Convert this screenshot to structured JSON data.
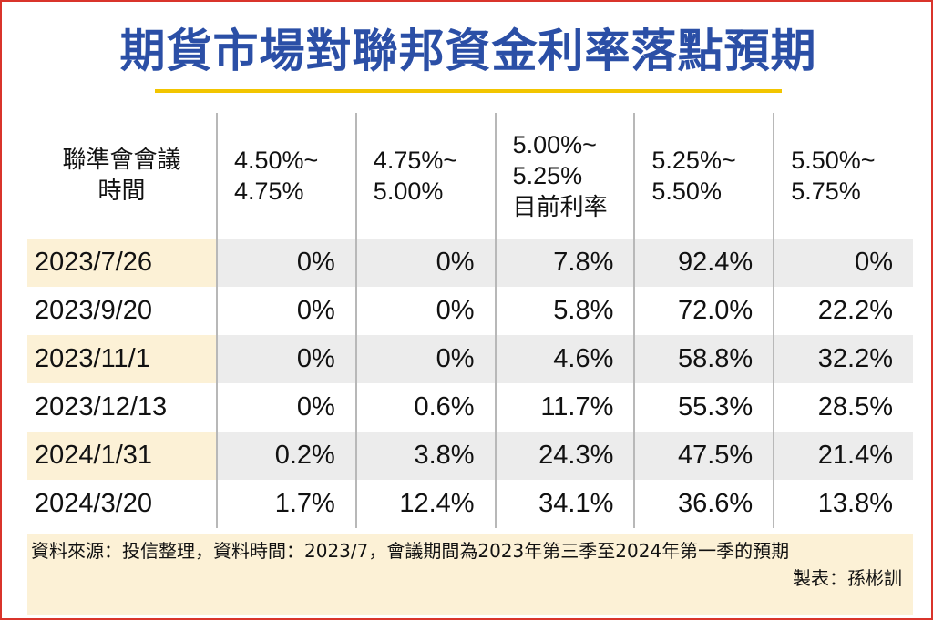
{
  "title": "期貨市場對聯邦資金利率落點預期",
  "colors": {
    "title": "#2b4fa6",
    "title_rule": "#f2c500",
    "frame": "#d9342b",
    "shade_date": "#fcf1d6",
    "shade_value": "#ececec"
  },
  "chart_data": {
    "type": "table",
    "columns": [
      {
        "line1": "聯準會會議",
        "line2": "時間",
        "line3": ""
      },
      {
        "line1": "4.50%~",
        "line2": "4.75%",
        "line3": ""
      },
      {
        "line1": "4.75%~",
        "line2": "5.00%",
        "line3": ""
      },
      {
        "line1": "5.00%~",
        "line2": "5.25%",
        "line3": "目前利率"
      },
      {
        "line1": "5.25%~",
        "line2": "5.50%",
        "line3": ""
      },
      {
        "line1": "5.50%~",
        "line2": "5.75%",
        "line3": ""
      }
    ],
    "rows": [
      {
        "date": "2023/7/26",
        "values": [
          "0%",
          "0%",
          "7.8%",
          "92.4%",
          "0%"
        ]
      },
      {
        "date": "2023/9/20",
        "values": [
          "0%",
          "0%",
          "5.8%",
          "72.0%",
          "22.2%"
        ]
      },
      {
        "date": "2023/11/1",
        "values": [
          "0%",
          "0%",
          "4.6%",
          "58.8%",
          "32.2%"
        ]
      },
      {
        "date": "2023/12/13",
        "values": [
          "0%",
          "0.6%",
          "11.7%",
          "55.3%",
          "28.5%"
        ]
      },
      {
        "date": "2024/1/31",
        "values": [
          "0.2%",
          "3.8%",
          "24.3%",
          "47.5%",
          "21.4%"
        ]
      },
      {
        "date": "2024/3/20",
        "values": [
          "1.7%",
          "12.4%",
          "34.1%",
          "36.6%",
          "13.8%"
        ]
      }
    ]
  },
  "footer": {
    "source": "資料來源：投信整理，資料時間：2023/7，會議期間為2023年第三季至2024年第一季的預期",
    "author": "製表：孫彬訓"
  }
}
